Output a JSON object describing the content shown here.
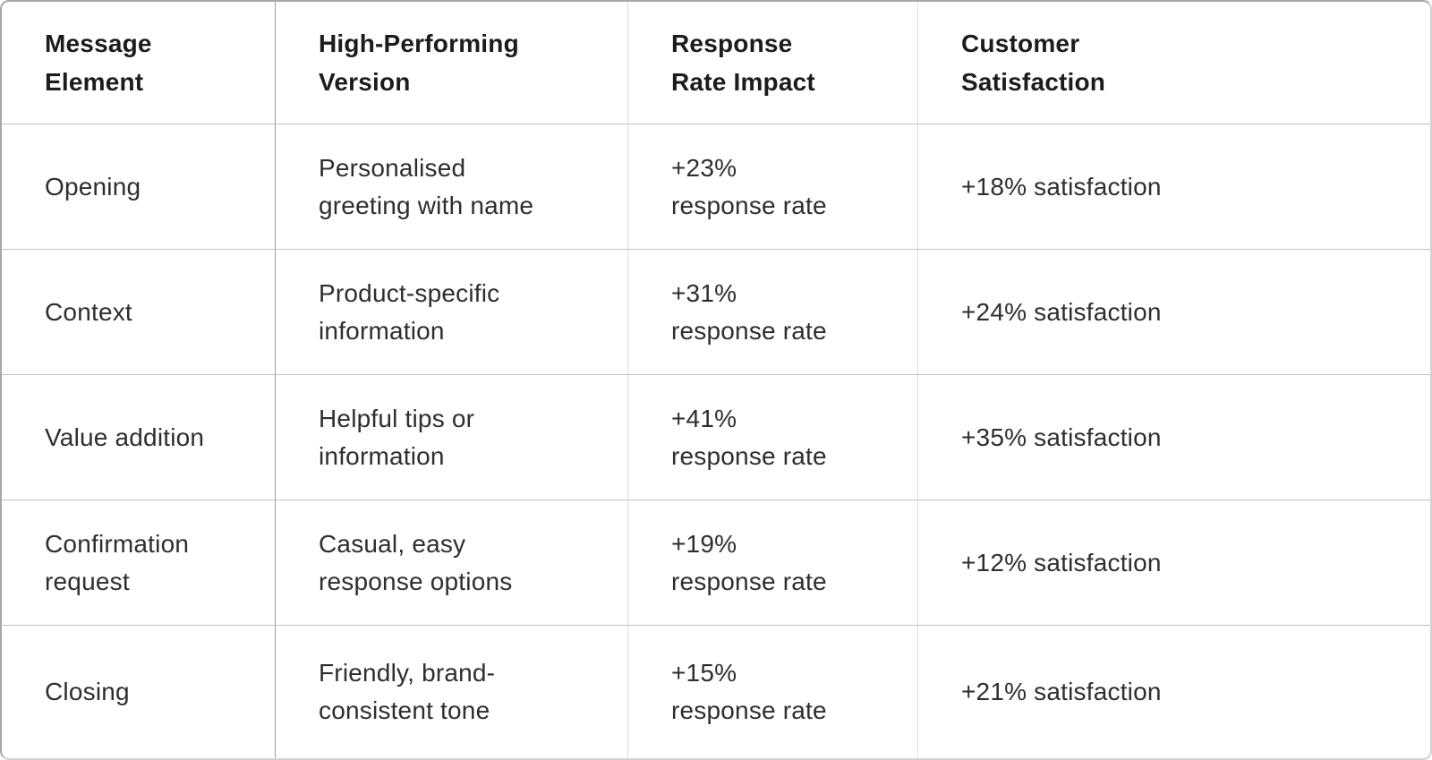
{
  "colors": {
    "background": "#ffffff",
    "text_heading": "#1c1c1c",
    "text_body": "#2e2e2e",
    "outer_border": "#a8a8a8",
    "outer_border_light": "#d2d2d2",
    "row_divider": "#c0c0c0",
    "col_divider_strong": "#9d9d9d",
    "col_divider_light": "#dedede"
  },
  "table": {
    "headers": [
      "Message\nElement",
      "High-Performing\nVersion",
      "Response\nRate Impact",
      "Customer\nSatisfaction"
    ],
    "rows": [
      {
        "element": "Opening",
        "version": "Personalised\ngreeting with name",
        "impact": "+23%\nresponse rate",
        "satisfaction": "+18% satisfaction"
      },
      {
        "element": "Context",
        "version": "Product-specific\ninformation",
        "impact": "+31%\nresponse rate",
        "satisfaction": "+24% satisfaction"
      },
      {
        "element": "Value addition",
        "version": "Helpful tips or\ninformation",
        "impact": "+41%\nresponse rate",
        "satisfaction": "+35% satisfaction"
      },
      {
        "element": "Confirmation\nrequest",
        "version": "Casual, easy\nresponse options",
        "impact": "+19%\nresponse rate",
        "satisfaction": "+12% satisfaction"
      },
      {
        "element": "Closing",
        "version": "Friendly, brand-\nconsistent tone",
        "impact": "+15%\nresponse rate",
        "satisfaction": "+21% satisfaction"
      }
    ]
  }
}
